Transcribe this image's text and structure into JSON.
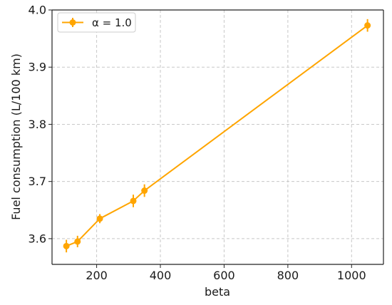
{
  "chart_data": {
    "type": "line",
    "xlabel": "beta",
    "ylabel": "Fuel consumption (L/100 km)",
    "xlim": [
      60,
      1100
    ],
    "ylim": [
      3.555,
      4.0
    ],
    "x_ticks": [
      200,
      400,
      600,
      800,
      1000
    ],
    "y_ticks": [
      3.6,
      3.7,
      3.8,
      3.9,
      4.0
    ],
    "x_tick_labels": [
      "200",
      "400",
      "600",
      "800",
      "1000"
    ],
    "y_tick_labels": [
      "3.6",
      "3.7",
      "3.8",
      "3.9",
      "4.0"
    ],
    "grid": true,
    "legend_position": "top-left",
    "series": [
      {
        "name": "α = 1.0",
        "color": "#FFA500",
        "x": [
          105,
          140,
          210,
          315,
          350,
          1050
        ],
        "y": [
          3.587,
          3.595,
          3.635,
          3.666,
          3.684,
          3.973
        ],
        "yerr": [
          0.011,
          0.01,
          0.008,
          0.011,
          0.011,
          0.011
        ]
      }
    ]
  }
}
